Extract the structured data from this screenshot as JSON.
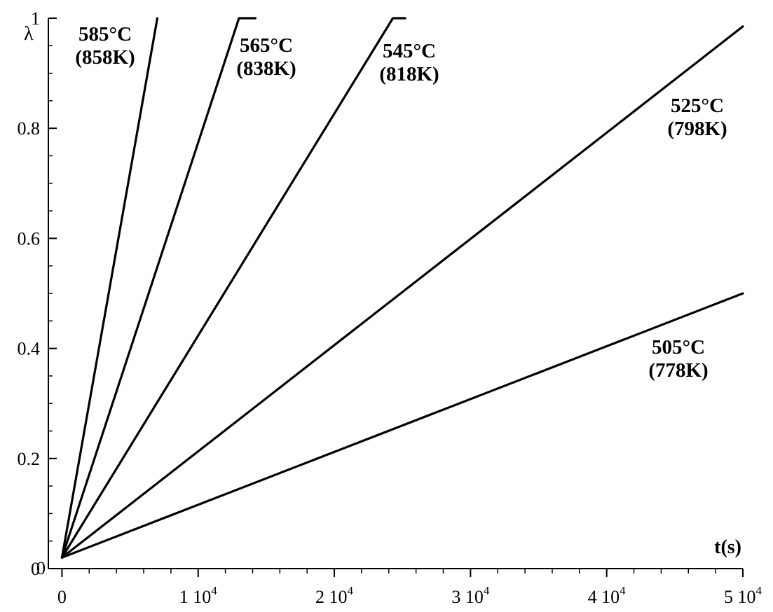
{
  "chart_data": {
    "type": "line",
    "title": "",
    "xlabel": "t(s)",
    "ylabel": "λ",
    "xlim": [
      -1000,
      50000
    ],
    "ylim": [
      0,
      1
    ],
    "grid": false,
    "legend": "none",
    "x_ticks": [
      {
        "value": 0,
        "mantissa": "0",
        "exponent": ""
      },
      {
        "value": 10000,
        "mantissa": "1 10",
        "exponent": "4"
      },
      {
        "value": 20000,
        "mantissa": "2 10",
        "exponent": "4"
      },
      {
        "value": 30000,
        "mantissa": "3 10",
        "exponent": "4"
      },
      {
        "value": 40000,
        "mantissa": "4 10",
        "exponent": "4"
      },
      {
        "value": 50000,
        "mantissa": "5 10",
        "exponent": "4"
      }
    ],
    "x_origin_label": "0",
    "y_ticks": [
      {
        "value": 0,
        "label": "0"
      },
      {
        "value": 0.2,
        "label": "0.2"
      },
      {
        "value": 0.4,
        "label": "0.4"
      },
      {
        "value": 0.6,
        "label": "0.6"
      },
      {
        "value": 0.8,
        "label": "0.8"
      },
      {
        "value": 1,
        "label": "1"
      }
    ],
    "series": [
      {
        "label_line1": "585°C",
        "label_line2": "(858K)",
        "points": [
          [
            0,
            0.02
          ],
          [
            7000,
            1.0
          ]
        ]
      },
      {
        "label_line1": "565°C",
        "label_line2": "(838K)",
        "points": [
          [
            0,
            0.02
          ],
          [
            13000,
            1.0
          ],
          [
            14200,
            1.0
          ]
        ]
      },
      {
        "label_line1": "545°C",
        "label_line2": "(818K)",
        "points": [
          [
            0,
            0.02
          ],
          [
            24300,
            1.0
          ],
          [
            25200,
            1.0
          ]
        ]
      },
      {
        "label_line1": "525°C",
        "label_line2": "(798K)",
        "points": [
          [
            0,
            0.02
          ],
          [
            50000,
            0.985
          ]
        ]
      },
      {
        "label_line1": "505°C",
        "label_line2": "(778K)",
        "points": [
          [
            0,
            0.02
          ],
          [
            50000,
            0.5
          ]
        ]
      }
    ]
  }
}
